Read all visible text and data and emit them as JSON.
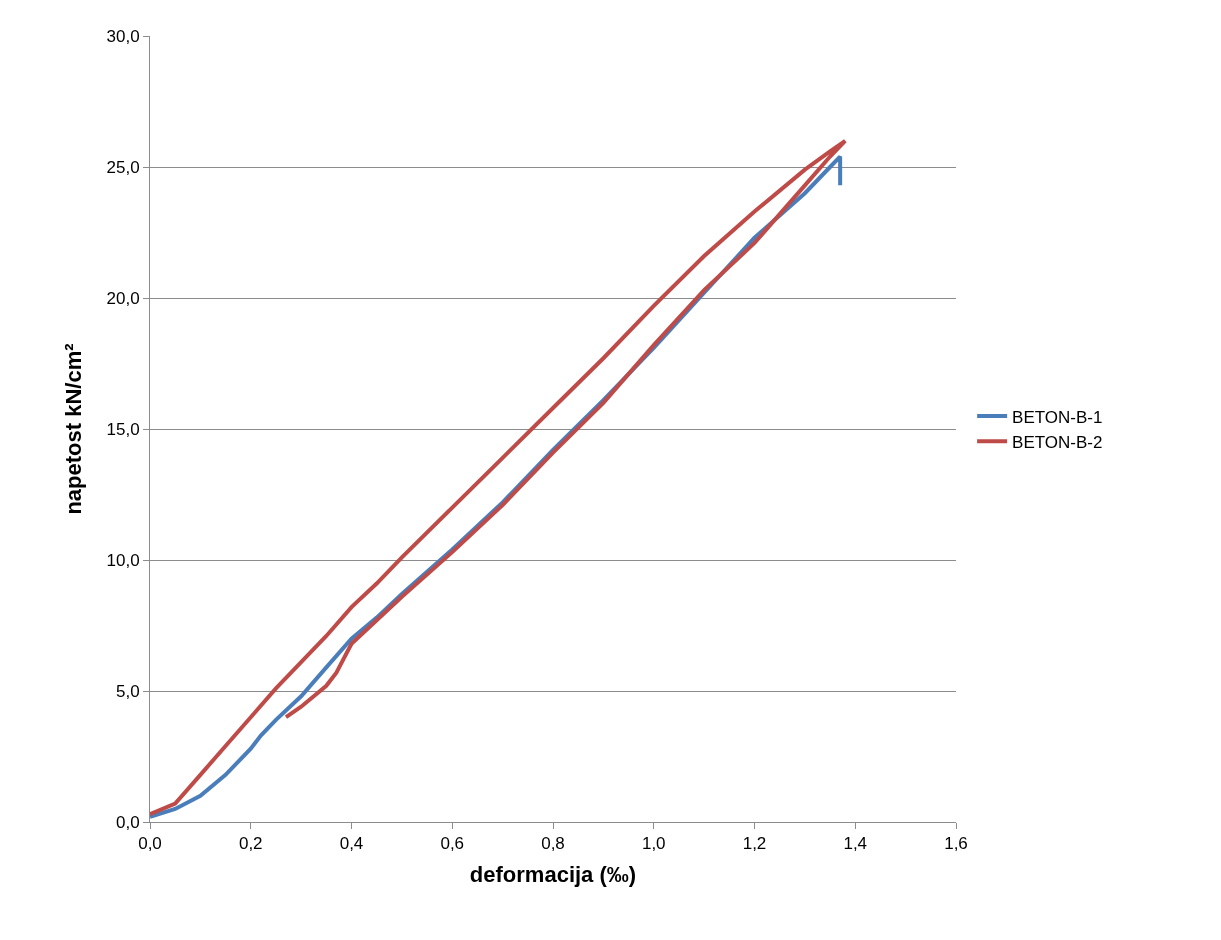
{
  "chart_data": {
    "type": "line",
    "xlabel": "deformacija (‰)",
    "ylabel": "napetost kN/cm²",
    "series": [
      {
        "name": "BETON-B-1",
        "color": "#4a7ebb",
        "x": [
          0,
          0.05,
          0.1,
          0.15,
          0.2,
          0.22,
          0.25,
          0.3,
          0.35,
          0.4,
          0.45,
          0.5,
          0.6,
          0.7,
          0.8,
          0.9,
          1.0,
          1.1,
          1.2,
          1.3,
          1.35,
          1.37,
          1.37
        ],
        "values": [
          0.2,
          0.5,
          1.0,
          1.8,
          2.8,
          3.3,
          3.9,
          4.8,
          5.9,
          7.0,
          7.8,
          8.7,
          10.4,
          12.2,
          14.2,
          16.1,
          18.1,
          20.2,
          22.3,
          24.0,
          25.0,
          25.4,
          24.3
        ]
      },
      {
        "name": "BETON-B-2",
        "color": "#be4b48",
        "x": [
          0,
          0.05,
          0.1,
          0.15,
          0.2,
          0.25,
          0.3,
          0.35,
          0.4,
          0.45,
          0.5,
          0.6,
          0.7,
          0.8,
          0.9,
          1.0,
          1.1,
          1.2,
          1.3,
          1.35,
          1.38,
          1.35,
          1.3,
          1.2,
          1.1,
          1.0,
          0.9,
          0.8,
          0.7,
          0.6,
          0.5,
          0.45,
          0.4,
          0.37,
          0.35,
          0.3,
          0.27
        ],
        "values": [
          0.3,
          0.7,
          1.8,
          2.9,
          4.0,
          5.1,
          6.1,
          7.1,
          8.2,
          9.1,
          10.1,
          12.0,
          13.9,
          15.8,
          17.7,
          19.7,
          21.6,
          23.3,
          24.9,
          25.6,
          26.0,
          25.4,
          24.3,
          22.1,
          20.3,
          18.2,
          16.0,
          14.1,
          12.1,
          10.3,
          8.6,
          7.7,
          6.8,
          5.7,
          5.2,
          4.4,
          4.0
        ]
      }
    ],
    "xlim": [
      0,
      1.6
    ],
    "xticks": [
      {
        "value": 0,
        "label": "0,0"
      },
      {
        "value": 0.2,
        "label": "0,2"
      },
      {
        "value": 0.4,
        "label": "0,4"
      },
      {
        "value": 0.6,
        "label": "0,6"
      },
      {
        "value": 0.8,
        "label": "0,8"
      },
      {
        "value": 1.0,
        "label": "1,0"
      },
      {
        "value": 1.2,
        "label": "1,2"
      },
      {
        "value": 1.4,
        "label": "1,4"
      },
      {
        "value": 1.6,
        "label": "1,6"
      }
    ],
    "ylim": [
      0,
      30
    ],
    "yticks": [
      {
        "value": 0,
        "label": "0,0"
      },
      {
        "value": 5,
        "label": "5,0"
      },
      {
        "value": 10,
        "label": "10,0"
      },
      {
        "value": 15,
        "label": "15,0"
      },
      {
        "value": 20,
        "label": "20,0"
      },
      {
        "value": 25,
        "label": "25,0"
      },
      {
        "value": 30,
        "label": "30,0"
      }
    ],
    "grid": "y",
    "legend": "right",
    "marker": "none",
    "line_style": "solid"
  }
}
